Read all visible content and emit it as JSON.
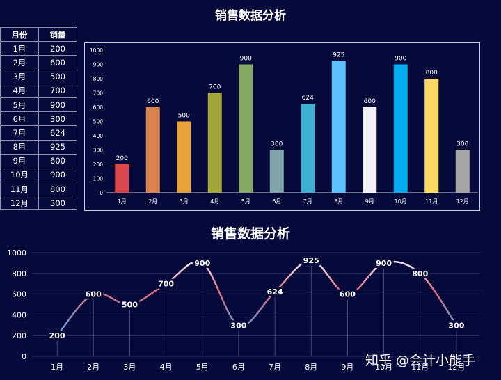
{
  "title": "销售数据分析",
  "table": {
    "headers": [
      "月份",
      "销量"
    ],
    "rows": [
      [
        "1月",
        "200"
      ],
      [
        "2月",
        "600"
      ],
      [
        "3月",
        "500"
      ],
      [
        "4月",
        "700"
      ],
      [
        "5月",
        "900"
      ],
      [
        "6月",
        "300"
      ],
      [
        "7月",
        "624"
      ],
      [
        "8月",
        "925"
      ],
      [
        "9月",
        "600"
      ],
      [
        "10月",
        "900"
      ],
      [
        "11月",
        "800"
      ],
      [
        "12月",
        "300"
      ]
    ]
  },
  "chart_data": [
    {
      "type": "bar",
      "title": "销售数据分析",
      "categories": [
        "1月",
        "2月",
        "3月",
        "4月",
        "5月",
        "6月",
        "7月",
        "8月",
        "9月",
        "10月",
        "11月",
        "12月"
      ],
      "values": [
        200,
        600,
        500,
        700,
        900,
        300,
        624,
        925,
        600,
        900,
        800,
        300
      ],
      "ylim": [
        0,
        1000
      ],
      "yticks": [
        0,
        100,
        200,
        300,
        400,
        500,
        600,
        700,
        800,
        900,
        1000
      ],
      "colors": [
        "#d9494f",
        "#d9834f",
        "#e8a23a",
        "#a3a53a",
        "#86a865",
        "#7ea3a8",
        "#3fb0d4",
        "#5cc1ff",
        "#f0f0f5",
        "#00aeef",
        "#ffd966",
        "#a6a6a6"
      ],
      "grid": false
    },
    {
      "type": "line",
      "title": "销售数据分析",
      "categories": [
        "1月",
        "2月",
        "3月",
        "4月",
        "5月",
        "6月",
        "7月",
        "8月",
        "9月",
        "10月",
        "11月",
        "12月"
      ],
      "values": [
        200,
        600,
        500,
        700,
        900,
        300,
        624,
        925,
        600,
        900,
        800,
        300
      ],
      "ylim": [
        0,
        1000
      ],
      "yticks": [
        0,
        200,
        400,
        600,
        800,
        1000
      ],
      "grid": true
    }
  ],
  "watermark": "知乎 @会计小能手"
}
